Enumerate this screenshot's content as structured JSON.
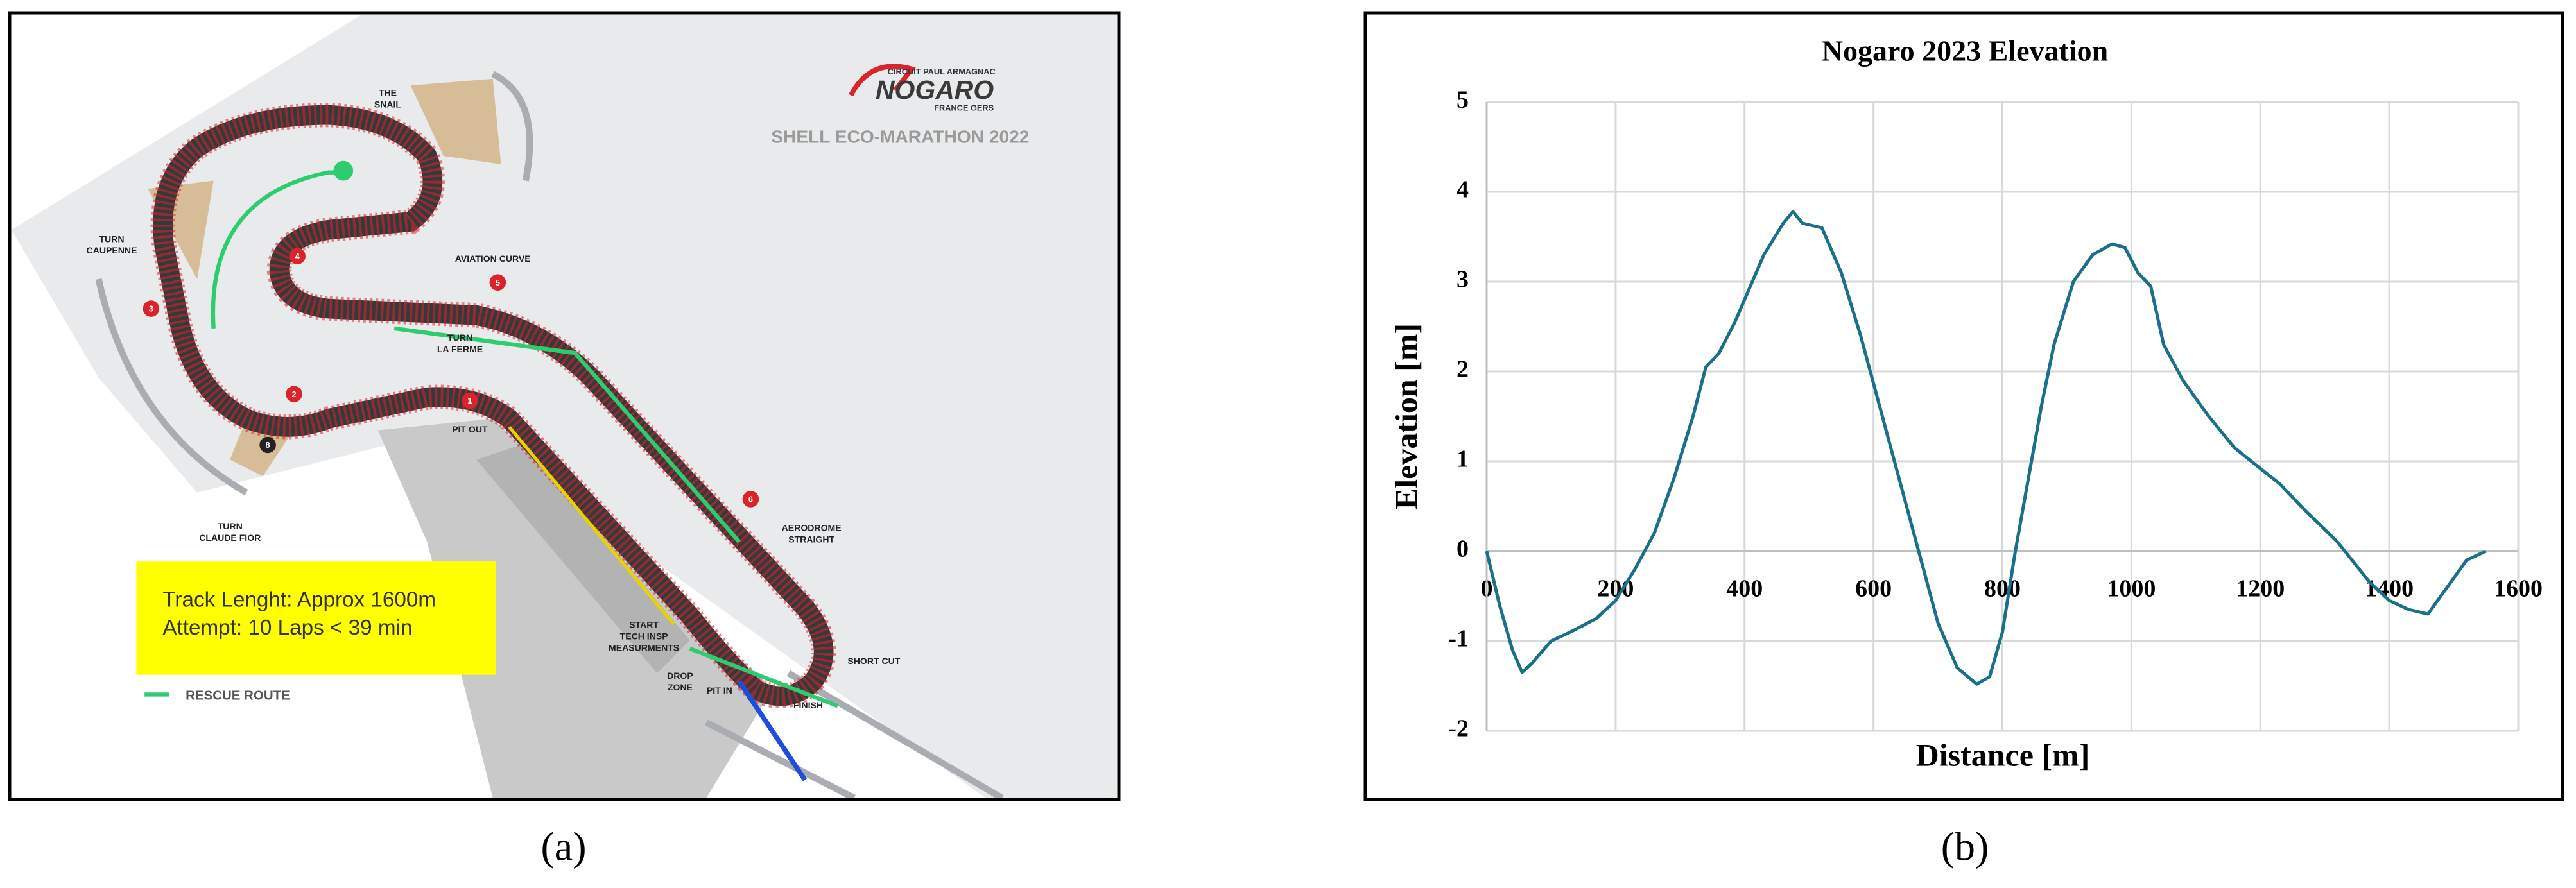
{
  "map": {
    "title": "SHELL ECO-MARATHON 2022",
    "logo": {
      "circuit": "CIRCUIT PAUL ARMAGNAC",
      "name": "NOGARO",
      "region": "FRANCE GERS"
    },
    "labels": [
      [
        "THE",
        "SNAIL"
      ],
      [
        "TURN",
        "CAUPENNE"
      ],
      [
        "AVIATION CURVE"
      ],
      [
        "TURN",
        "LA FERME"
      ],
      [
        "PIT OUT"
      ],
      [
        "TURN",
        "CLAUDE FIOR"
      ],
      [
        "AERODROME",
        "STRAIGHT"
      ],
      [
        "START",
        "TECH INSP",
        "MEASURMENTS"
      ],
      [
        "DROP",
        "ZONE"
      ],
      [
        "PIT IN"
      ],
      [
        "FINISH"
      ],
      [
        "SHORT CUT"
      ]
    ],
    "markers": [
      "1",
      "2",
      "3",
      "4",
      "5",
      "6",
      "8"
    ],
    "info": [
      "Track Lenght: Approx 1600m",
      "Attempt: 10 Laps < 39 min"
    ],
    "legend": "RESCUE ROUTE"
  },
  "captions": [
    "(a)",
    "(b)"
  ],
  "chart_data": {
    "type": "line",
    "title": "Nogaro 2023 Elevation",
    "x_label": "Distance [m]",
    "y_label": "Elevation [m]",
    "x": [
      0,
      20,
      40,
      55,
      70,
      100,
      130,
      170,
      200,
      230,
      260,
      290,
      320,
      340,
      360,
      385,
      400,
      430,
      460,
      475,
      490,
      520,
      550,
      580,
      610,
      640,
      670,
      700,
      730,
      760,
      780,
      800,
      820,
      840,
      860,
      880,
      910,
      940,
      970,
      990,
      1010,
      1030,
      1050,
      1080,
      1120,
      1160,
      1200,
      1230,
      1270,
      1320,
      1370,
      1400,
      1430,
      1460,
      1490,
      1520,
      1550
    ],
    "series": [
      {
        "name": "Elevation",
        "color": "#1a6f8a",
        "values": [
          0,
          -0.6,
          -1.1,
          -1.35,
          -1.25,
          -1.0,
          -0.9,
          -0.75,
          -0.55,
          -0.2,
          0.2,
          0.8,
          1.5,
          2.05,
          2.2,
          2.55,
          2.8,
          3.3,
          3.65,
          3.78,
          3.65,
          3.6,
          3.1,
          2.4,
          1.6,
          0.8,
          0,
          -0.8,
          -1.3,
          -1.48,
          -1.4,
          -0.9,
          0,
          0.8,
          1.6,
          2.3,
          3.0,
          3.3,
          3.42,
          3.38,
          3.1,
          2.95,
          2.3,
          1.9,
          1.5,
          1.15,
          0.92,
          0.75,
          0.45,
          0.1,
          -0.35,
          -0.55,
          -0.65,
          -0.7,
          -0.4,
          -0.1,
          0
        ]
      }
    ],
    "xlim": [
      0,
      1600
    ],
    "xticks": [
      0,
      200,
      400,
      600,
      800,
      1000,
      1200,
      1400,
      1600
    ],
    "ylim": [
      -2,
      5
    ],
    "yticks": [
      -2,
      -1,
      0,
      1,
      2,
      3,
      4,
      5
    ],
    "grid": true
  }
}
